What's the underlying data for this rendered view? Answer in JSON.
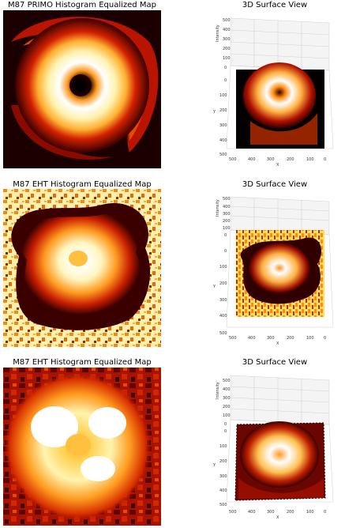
{
  "chart_data": [
    {
      "type": "heatmap",
      "title": "M87 PRIMO Histogram Equalized Map",
      "colormap": "hot",
      "features": "bright ring with dark central hole and swirling outer arc"
    },
    {
      "type": "surface3d",
      "title": "3D Surface View",
      "xlabel": "X",
      "ylabel": "Y",
      "zlabel": "Intensity",
      "xticks": [
        "500",
        "400",
        "300",
        "200",
        "100",
        "0"
      ],
      "yticks": [
        "0",
        "100",
        "200",
        "300",
        "400",
        "500"
      ],
      "zticks": [
        "0",
        "100",
        "200",
        "300",
        "400",
        "500"
      ],
      "colormap": "hot"
    },
    {
      "type": "heatmap",
      "title": "M87 EHT Histogram Equalized Map",
      "colormap": "hot",
      "features": "irregular bright blob with dark rim on speckled orange background"
    },
    {
      "type": "surface3d",
      "title": "3D Surface View",
      "xlabel": "X",
      "ylabel": "Y",
      "zlabel": "Intensity",
      "xticks": [
        "500",
        "400",
        "300",
        "200",
        "100",
        "0"
      ],
      "yticks": [
        "0",
        "100",
        "200",
        "300",
        "400",
        "500"
      ],
      "zticks": [
        "0",
        "100",
        "200",
        "300",
        "400",
        "500"
      ],
      "colormap": "hot"
    },
    {
      "type": "heatmap",
      "title": "M87 EHT Histogram Equalized Map",
      "colormap": "hot",
      "features": "diffuse bright ring with white patches on blocky red background"
    },
    {
      "type": "surface3d",
      "title": "3D Surface View",
      "xlabel": "X",
      "ylabel": "Y",
      "zlabel": "Intensity",
      "xticks": [
        "500",
        "400",
        "300",
        "200",
        "100",
        "0"
      ],
      "yticks": [
        "0",
        "100",
        "200",
        "300",
        "400",
        "500"
      ],
      "zticks": [
        "0",
        "100",
        "200",
        "300",
        "400",
        "500"
      ],
      "colormap": "hot"
    }
  ]
}
